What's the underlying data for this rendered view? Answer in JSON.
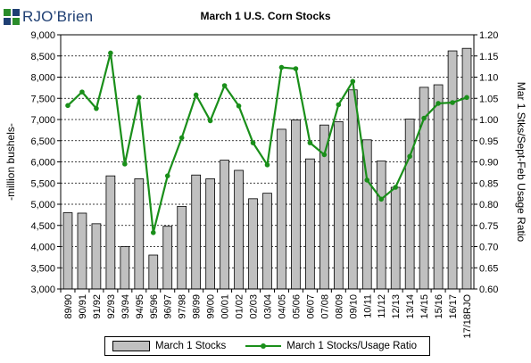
{
  "logo": {
    "text": "RJO’Brien"
  },
  "chart_data": {
    "type": "bar",
    "title": "March 1 U.S. Corn Stocks",
    "ylabel": "-million bushels-",
    "y2label": "Mar 1 Stks/Sept-Feb Usage Ratio",
    "ylim": [
      3000,
      9000
    ],
    "y2lim": [
      0.6,
      1.2
    ],
    "yticks": [
      "3,000",
      "3,500",
      "4,000",
      "4,500",
      "5,000",
      "5,500",
      "6,000",
      "6,500",
      "7,000",
      "7,500",
      "8,000",
      "8,500",
      "9,000"
    ],
    "y2ticks": [
      "0.60",
      "0.65",
      "0.70",
      "0.75",
      "0.80",
      "0.85",
      "0.90",
      "0.95",
      "1.00",
      "1.05",
      "1.10",
      "1.15",
      "1.20"
    ],
    "grid": true,
    "legend": "bottom",
    "categories": [
      "89/90",
      "90/91",
      "91/92",
      "92/93",
      "93/94",
      "94/95",
      "95/96",
      "96/97",
      "97/98",
      "98/99",
      "99/00",
      "00/01",
      "01/02",
      "02/03",
      "03/04",
      "04/05",
      "05/06",
      "06/07",
      "07/08",
      "08/09",
      "09/10",
      "10/11",
      "11/12",
      "12/13",
      "13/14",
      "14/15",
      "15/16",
      "16/17",
      "17/18RJO"
    ],
    "series": [
      {
        "name": "March 1 Stocks",
        "type": "bar",
        "color": "#c0c0c0",
        "axis": "left",
        "values": [
          4800,
          4790,
          4540,
          5670,
          4000,
          5600,
          3800,
          4480,
          4950,
          5690,
          5600,
          6040,
          5800,
          5130,
          5260,
          6770,
          6990,
          6070,
          6870,
          6950,
          7700,
          6520,
          6020,
          5400,
          7010,
          7760,
          7820,
          8620,
          8680
        ]
      },
      {
        "name": "March 1 Stocks/Usage Ratio",
        "type": "line",
        "color": "#1a8f1a",
        "axis": "right",
        "values": [
          1.033,
          1.065,
          1.026,
          1.157,
          0.895,
          1.052,
          0.733,
          0.867,
          0.957,
          1.058,
          0.997,
          1.08,
          1.032,
          0.945,
          0.893,
          1.123,
          1.12,
          0.945,
          0.917,
          1.035,
          1.09,
          0.857,
          0.812,
          0.84,
          0.913,
          1.003,
          1.038,
          1.04,
          1.052
        ]
      }
    ]
  }
}
